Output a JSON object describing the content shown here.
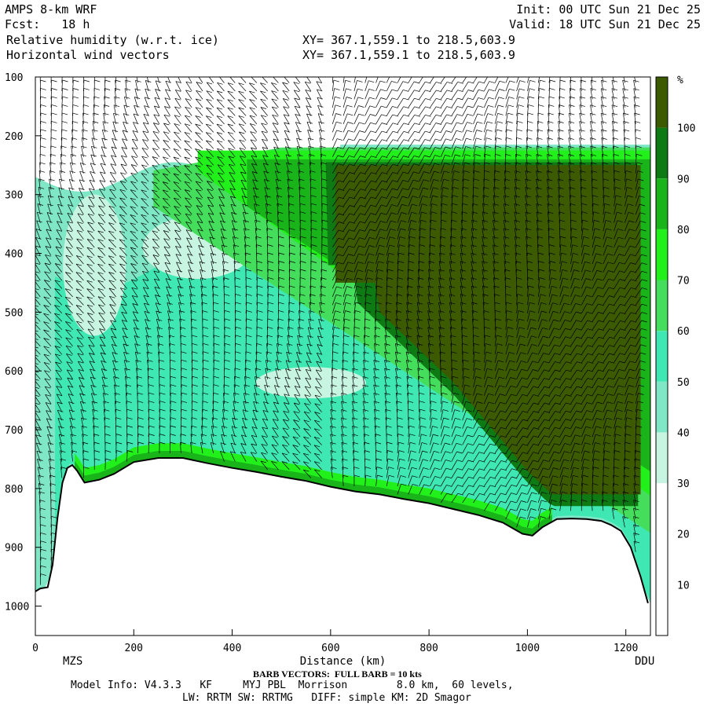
{
  "header": {
    "model": "AMPS 8-km WRF",
    "fcst": "Fcst:   18 h",
    "init": "Init: 00 UTC Sun 21 Dec 25",
    "valid": "Valid: 18 UTC Sun 21 Dec 25",
    "field1": "Relative humidity (w.r.t. ice)",
    "field2": "Horizontal wind vectors",
    "xy1": "XY= 367.1,559.1 to 218.5,603.9",
    "xy2": "XY= 367.1,559.1 to 218.5,603.9"
  },
  "footer": {
    "barb_note": "BARB VECTORS:  FULL BARB = 10 kts",
    "model_info": "Model Info: V4.3.3   KF     MYJ PBL  Morrison        8.0 km,  60 levels,",
    "physics": "LW: RRTM SW: RRTMG   DIFF: simple KM: 2D Smagor"
  },
  "colors": {
    "rh_30_40": "#c8f5e1",
    "rh_40_50": "#7fe7c6",
    "rh_50_60": "#3fe8b2",
    "rh_60_70": "#45dd5c",
    "rh_70_80": "#22f01a",
    "rh_80_90": "#19b41a",
    "rh_90_100": "#0d7a14",
    "rh_100": "#3c5a00",
    "terrain": "#ffffff"
  },
  "chart_data": {
    "type": "heatmap",
    "title": "Relative humidity (w.r.t. ice)",
    "xlabel": "Distance (km)",
    "ylabel": "",
    "xlim": [
      0,
      1250
    ],
    "ylim": [
      1050,
      100
    ],
    "x_ticks": [
      "0",
      "200",
      "400",
      "600",
      "800",
      "1000",
      "1200"
    ],
    "y_ticks": [
      "100",
      "200",
      "300",
      "400",
      "500",
      "600",
      "700",
      "800",
      "900",
      "1000"
    ],
    "endpoints": {
      "left": "MZS",
      "right": "DDU"
    },
    "colorbar": {
      "unit": "%",
      "ticks": [
        "10",
        "20",
        "30",
        "40",
        "50",
        "60",
        "70",
        "80",
        "90",
        "100"
      ]
    },
    "surface_pressure": {
      "x": [
        0,
        10,
        25,
        35,
        45,
        55,
        65,
        75,
        85,
        100,
        130,
        160,
        200,
        250,
        300,
        350,
        400,
        450,
        500,
        550,
        600,
        650,
        700,
        750,
        800,
        850,
        900,
        950,
        990,
        1010,
        1030,
        1060,
        1090,
        1120,
        1150,
        1170,
        1190,
        1210,
        1230,
        1245
      ],
      "p": [
        975,
        970,
        968,
        930,
        850,
        790,
        765,
        760,
        770,
        790,
        785,
        775,
        755,
        748,
        748,
        757,
        765,
        772,
        780,
        787,
        797,
        805,
        810,
        818,
        825,
        835,
        845,
        858,
        877,
        880,
        866,
        852,
        851,
        852,
        855,
        862,
        872,
        900,
        950,
        995
      ]
    },
    "dry_top_boundary_p": 200,
    "moist_front": {
      "x": [
        650,
        700,
        750,
        800,
        850,
        900,
        950,
        1000,
        1050
      ],
      "p": [
        480,
        520,
        560,
        600,
        640,
        690,
        740,
        790,
        830
      ]
    }
  }
}
